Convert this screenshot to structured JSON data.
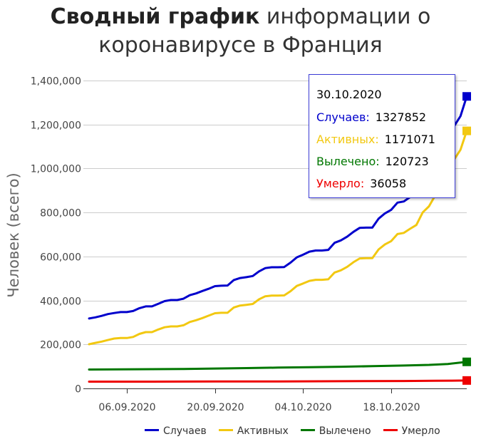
{
  "title": {
    "bold": "Сводный график",
    "line1_rest": " информации о",
    "line2": "коронавирусе в Франция"
  },
  "tooltip": {
    "date": "30.10.2020",
    "rows": [
      {
        "label": "Случаев:",
        "value": "1327852",
        "color": "#0000cc"
      },
      {
        "label": "Активных:",
        "value": "1171071",
        "color": "#f2c811"
      },
      {
        "label": "Вылечено:",
        "value": "120723",
        "color": "#007700"
      },
      {
        "label": "Умерло:",
        "value": "36058",
        "color": "#ee0000"
      }
    ]
  },
  "chart_data": {
    "type": "line",
    "ylabel": "Человек (всего)",
    "xlabel": "",
    "ylim": [
      0,
      1400000
    ],
    "yticks": [
      "0",
      "200,000",
      "400,000",
      "600,000",
      "800,000",
      "1,000,000",
      "1,200,000",
      "1,400,000"
    ],
    "xtick_labels": [
      "06.09.2020",
      "20.09.2020",
      "04.10.2020",
      "18.10.2020"
    ],
    "xtick_days": [
      6,
      20,
      34,
      48
    ],
    "x_start_day": 0,
    "x_end_day": 60,
    "legend_position": "bottom",
    "grid": true,
    "series": [
      {
        "name": "Случаев",
        "color": "#0000cc",
        "points": [
          [
            0,
            318000
          ],
          [
            1,
            323000
          ],
          [
            2,
            330000
          ],
          [
            3,
            338000
          ],
          [
            4,
            343000
          ],
          [
            5,
            347000
          ],
          [
            6,
            347000
          ],
          [
            7,
            352000
          ],
          [
            8,
            365000
          ],
          [
            9,
            373000
          ],
          [
            10,
            373000
          ],
          [
            11,
            385000
          ],
          [
            12,
            397000
          ],
          [
            13,
            402000
          ],
          [
            14,
            402000
          ],
          [
            15,
            408000
          ],
          [
            16,
            424000
          ],
          [
            17,
            432000
          ],
          [
            18,
            443000
          ],
          [
            19,
            453000
          ],
          [
            20,
            465000
          ],
          [
            21,
            467000
          ],
          [
            22,
            468000
          ],
          [
            23,
            493000
          ],
          [
            24,
            502000
          ],
          [
            25,
            506000
          ],
          [
            26,
            511000
          ],
          [
            27,
            532000
          ],
          [
            28,
            547000
          ],
          [
            29,
            551000
          ],
          [
            30,
            551000
          ],
          [
            31,
            552000
          ],
          [
            32,
            572000
          ],
          [
            33,
            596000
          ],
          [
            34,
            608000
          ],
          [
            35,
            622000
          ],
          [
            36,
            627000
          ],
          [
            37,
            627000
          ],
          [
            38,
            630000
          ],
          [
            39,
            662000
          ],
          [
            40,
            673000
          ],
          [
            41,
            690000
          ],
          [
            42,
            712000
          ],
          [
            43,
            730000
          ],
          [
            44,
            731000
          ],
          [
            45,
            731000
          ],
          [
            46,
            772000
          ],
          [
            47,
            796000
          ],
          [
            48,
            812000
          ],
          [
            49,
            845000
          ],
          [
            50,
            850000
          ],
          [
            51,
            870000
          ],
          [
            52,
            888000
          ],
          [
            53,
            946000
          ],
          [
            54,
            975000
          ],
          [
            55,
            1027000
          ],
          [
            56,
            1089000
          ],
          [
            57,
            1142000
          ],
          [
            58,
            1193000
          ],
          [
            59,
            1238000
          ],
          [
            60,
            1327852
          ]
        ]
      },
      {
        "name": "Активных",
        "color": "#f2c811",
        "points": [
          [
            0,
            201000
          ],
          [
            1,
            207000
          ],
          [
            2,
            213000
          ],
          [
            3,
            220000
          ],
          [
            4,
            227000
          ],
          [
            5,
            229000
          ],
          [
            6,
            229000
          ],
          [
            7,
            234000
          ],
          [
            8,
            248000
          ],
          [
            9,
            256000
          ],
          [
            10,
            256000
          ],
          [
            11,
            268000
          ],
          [
            12,
            278000
          ],
          [
            13,
            282000
          ],
          [
            14,
            282000
          ],
          [
            15,
            287000
          ],
          [
            16,
            302000
          ],
          [
            17,
            310000
          ],
          [
            18,
            320000
          ],
          [
            19,
            331000
          ],
          [
            20,
            342000
          ],
          [
            21,
            344000
          ],
          [
            22,
            344000
          ],
          [
            23,
            368000
          ],
          [
            24,
            377000
          ],
          [
            25,
            380000
          ],
          [
            26,
            384000
          ],
          [
            27,
            405000
          ],
          [
            28,
            419000
          ],
          [
            29,
            422000
          ],
          [
            30,
            422000
          ],
          [
            31,
            423000
          ],
          [
            32,
            442000
          ],
          [
            33,
            466000
          ],
          [
            34,
            477000
          ],
          [
            35,
            489000
          ],
          [
            36,
            494000
          ],
          [
            37,
            494000
          ],
          [
            38,
            496000
          ],
          [
            39,
            527000
          ],
          [
            40,
            537000
          ],
          [
            41,
            553000
          ],
          [
            42,
            574000
          ],
          [
            43,
            591000
          ],
          [
            44,
            592000
          ],
          [
            45,
            592000
          ],
          [
            46,
            632000
          ],
          [
            47,
            655000
          ],
          [
            48,
            670000
          ],
          [
            49,
            702000
          ],
          [
            50,
            707000
          ],
          [
            51,
            726000
          ],
          [
            52,
            743000
          ],
          [
            53,
            800000
          ],
          [
            54,
            828000
          ],
          [
            55,
            878000
          ],
          [
            56,
            939000
          ],
          [
            57,
            991000
          ],
          [
            58,
            1041000
          ],
          [
            59,
            1085000
          ],
          [
            60,
            1171071
          ]
        ]
      },
      {
        "name": "Вылечено",
        "color": "#007700",
        "points": [
          [
            0,
            86000
          ],
          [
            5,
            86500
          ],
          [
            10,
            87500
          ],
          [
            15,
            88500
          ],
          [
            20,
            90500
          ],
          [
            25,
            92500
          ],
          [
            30,
            94500
          ],
          [
            35,
            96500
          ],
          [
            40,
            98500
          ],
          [
            45,
            101000
          ],
          [
            50,
            104000
          ],
          [
            54,
            107000
          ],
          [
            57,
            111000
          ],
          [
            60,
            120723
          ]
        ]
      },
      {
        "name": "Умерло",
        "color": "#ee0000",
        "points": [
          [
            0,
            30700
          ],
          [
            10,
            30900
          ],
          [
            20,
            31300
          ],
          [
            30,
            31900
          ],
          [
            40,
            32700
          ],
          [
            50,
            33800
          ],
          [
            55,
            34700
          ],
          [
            60,
            36058
          ]
        ]
      }
    ]
  }
}
